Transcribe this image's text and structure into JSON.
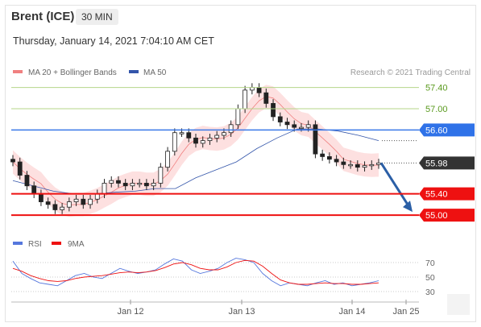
{
  "header": {
    "title": "Brent (ICE)",
    "timeframe": "30 MIN",
    "datetime": "Thursday, January 14, 2021 7:04:10 AM CET"
  },
  "credit": "Research © 2021 Trading Central",
  "colors": {
    "bollinger": "#f08080",
    "band_fill": "#fde0e0",
    "ma50": "#3355aa",
    "candle_up": "#ffffff",
    "candle_down": "#222222",
    "resistance_green": "#b5d58a",
    "pivot_blue": "#3a78e8",
    "support_red": "#ee1111",
    "rsi": "#5577dd",
    "rsi_ma": "#ee1111",
    "arrow": "#2b5fa6",
    "label_green": "#5a9a1e",
    "label_blue": "#2f72e8",
    "label_dark": "#333333",
    "label_red": "#ee1111"
  },
  "chart_data": [
    {
      "type": "line",
      "name": "price",
      "legend": [
        {
          "label": "MA 20 + Bollinger Bands",
          "color": "#f08080"
        },
        {
          "label": "MA 50",
          "color": "#3355aa"
        }
      ],
      "x_ticks": [
        "Jan 12",
        "Jan 13",
        "Jan 14",
        "Jan 25"
      ],
      "y_range": [
        54.88,
        57.53
      ],
      "levels": [
        {
          "value": 57.4,
          "label": "57.40",
          "kind": "resistance"
        },
        {
          "value": 57.0,
          "label": "57.00",
          "kind": "resistance"
        },
        {
          "value": 56.6,
          "label": "56.60",
          "kind": "pivot"
        },
        {
          "value": 55.98,
          "label": "55.98",
          "kind": "last"
        },
        {
          "value": 55.4,
          "label": "55.40",
          "kind": "support"
        },
        {
          "value": 55.0,
          "label": "55.00",
          "kind": "support"
        }
      ],
      "close_series": [
        56.0,
        55.75,
        55.55,
        55.4,
        55.25,
        55.2,
        55.1,
        55.15,
        55.25,
        55.3,
        55.2,
        55.3,
        55.4,
        55.6,
        55.65,
        55.6,
        55.55,
        55.6,
        55.6,
        55.55,
        55.6,
        55.9,
        56.2,
        56.55,
        56.55,
        56.45,
        56.35,
        56.4,
        56.45,
        56.5,
        56.55,
        56.7,
        57.0,
        57.35,
        57.4,
        57.3,
        57.1,
        56.85,
        56.75,
        56.7,
        56.65,
        56.65,
        56.7,
        56.15,
        56.1,
        56.05,
        56.0,
        55.95,
        55.95,
        55.9,
        55.93,
        55.95,
        55.98
      ],
      "ma50_series": [
        55.65,
        55.55,
        55.45,
        55.4,
        55.4,
        55.43,
        55.45,
        55.5,
        55.5,
        55.7,
        55.85,
        56.0,
        56.25,
        56.45,
        56.62,
        56.62,
        56.58,
        56.5,
        56.4
      ],
      "forecast": {
        "from": 55.98,
        "to": 55.0
      }
    },
    {
      "type": "line",
      "name": "rsi",
      "legend": [
        {
          "label": "RSI",
          "color": "#5577dd"
        },
        {
          "label": "9MA",
          "color": "#ee1111"
        }
      ],
      "y_ticks": [
        70,
        50,
        30
      ],
      "y_range": [
        20,
        80
      ],
      "rsi_series": [
        72,
        55,
        48,
        42,
        40,
        38,
        45,
        52,
        55,
        50,
        48,
        55,
        62,
        58,
        55,
        57,
        60,
        68,
        75,
        72,
        60,
        55,
        58,
        62,
        70,
        76,
        74,
        70,
        55,
        45,
        38,
        42,
        40,
        38,
        42,
        45,
        40,
        42,
        38,
        40,
        42,
        45
      ],
      "ma_series": [
        62,
        58,
        52,
        48,
        45,
        44,
        45,
        48,
        50,
        51,
        52,
        54,
        56,
        57,
        56,
        57,
        59,
        63,
        68,
        70,
        67,
        62,
        60,
        60,
        64,
        70,
        73,
        72,
        65,
        55,
        46,
        42,
        40,
        40,
        41,
        42,
        41,
        41,
        40,
        40,
        41,
        42
      ]
    }
  ]
}
